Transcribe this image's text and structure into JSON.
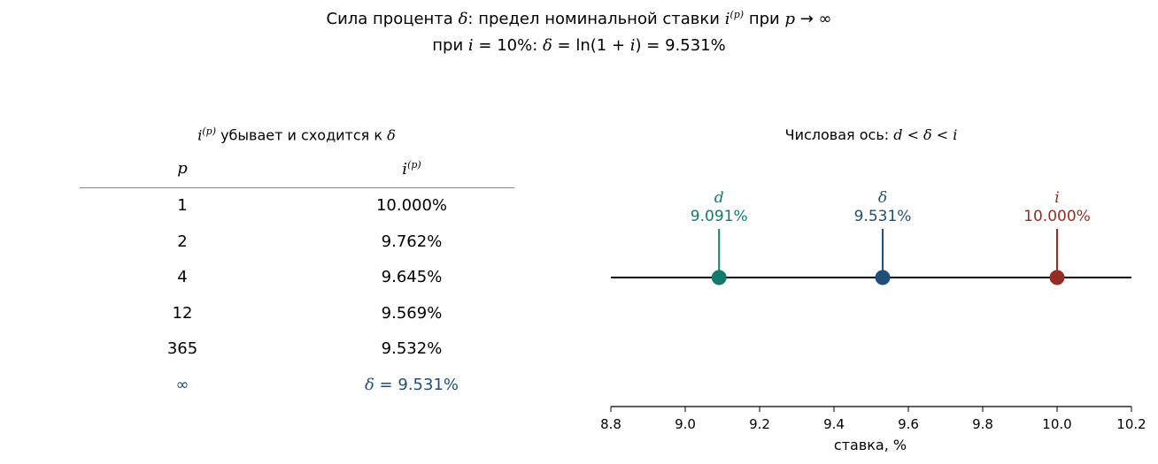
{
  "title": {
    "line1_prefix": "Сила процента ",
    "line1_delta": "δ",
    "line1_mid": ": предел номинальной ставки ",
    "line1_i": "i",
    "line1_sup": "(p)",
    "line1_suffix": " при ",
    "line1_p": "p",
    "line1_limit": " → ∞",
    "line2_prefix": "при ",
    "line2_i": "i",
    "line2_eq": " = 10%:  ",
    "line2_delta": "δ",
    "line2_formula": " = ln(1 + ",
    "line2_i2": "i",
    "line2_result": ") = 9.531%"
  },
  "table": {
    "heading_i": "i",
    "heading_sup": "(p)",
    "heading_text": " убывает и сходится к ",
    "heading_delta": "δ",
    "col_p": "p",
    "col_i": "i",
    "col_i_sup": "(p)",
    "rows": [
      {
        "p": "1",
        "ip": "10.000%"
      },
      {
        "p": "2",
        "ip": "9.762%"
      },
      {
        "p": "4",
        "ip": "9.645%"
      },
      {
        "p": "12",
        "ip": "9.569%"
      },
      {
        "p": "365",
        "ip": "9.532%"
      }
    ],
    "limit_row": {
      "p": "∞",
      "delta": "δ",
      "eq": " = 9.531%"
    },
    "limit_color": "#1f4e79"
  },
  "chart_data": {
    "type": "scatter",
    "title_text": "Числовая ось: ",
    "title_math": "d < δ < i",
    "xlabel": "ставка, %",
    "xlim": [
      8.8,
      10.2
    ],
    "xticks": [
      "8.8",
      "9.0",
      "9.2",
      "9.4",
      "9.6",
      "9.8",
      "10.0",
      "10.2"
    ],
    "points": [
      {
        "symbol": "d",
        "value": 9.091,
        "label": "9.091%",
        "color": "#127a6a"
      },
      {
        "symbol": "δ",
        "value": 9.531,
        "label": "9.531%",
        "color": "#1f4e79"
      },
      {
        "symbol": "i",
        "value": 10.0,
        "label": "10.000%",
        "color": "#962d25"
      }
    ]
  }
}
